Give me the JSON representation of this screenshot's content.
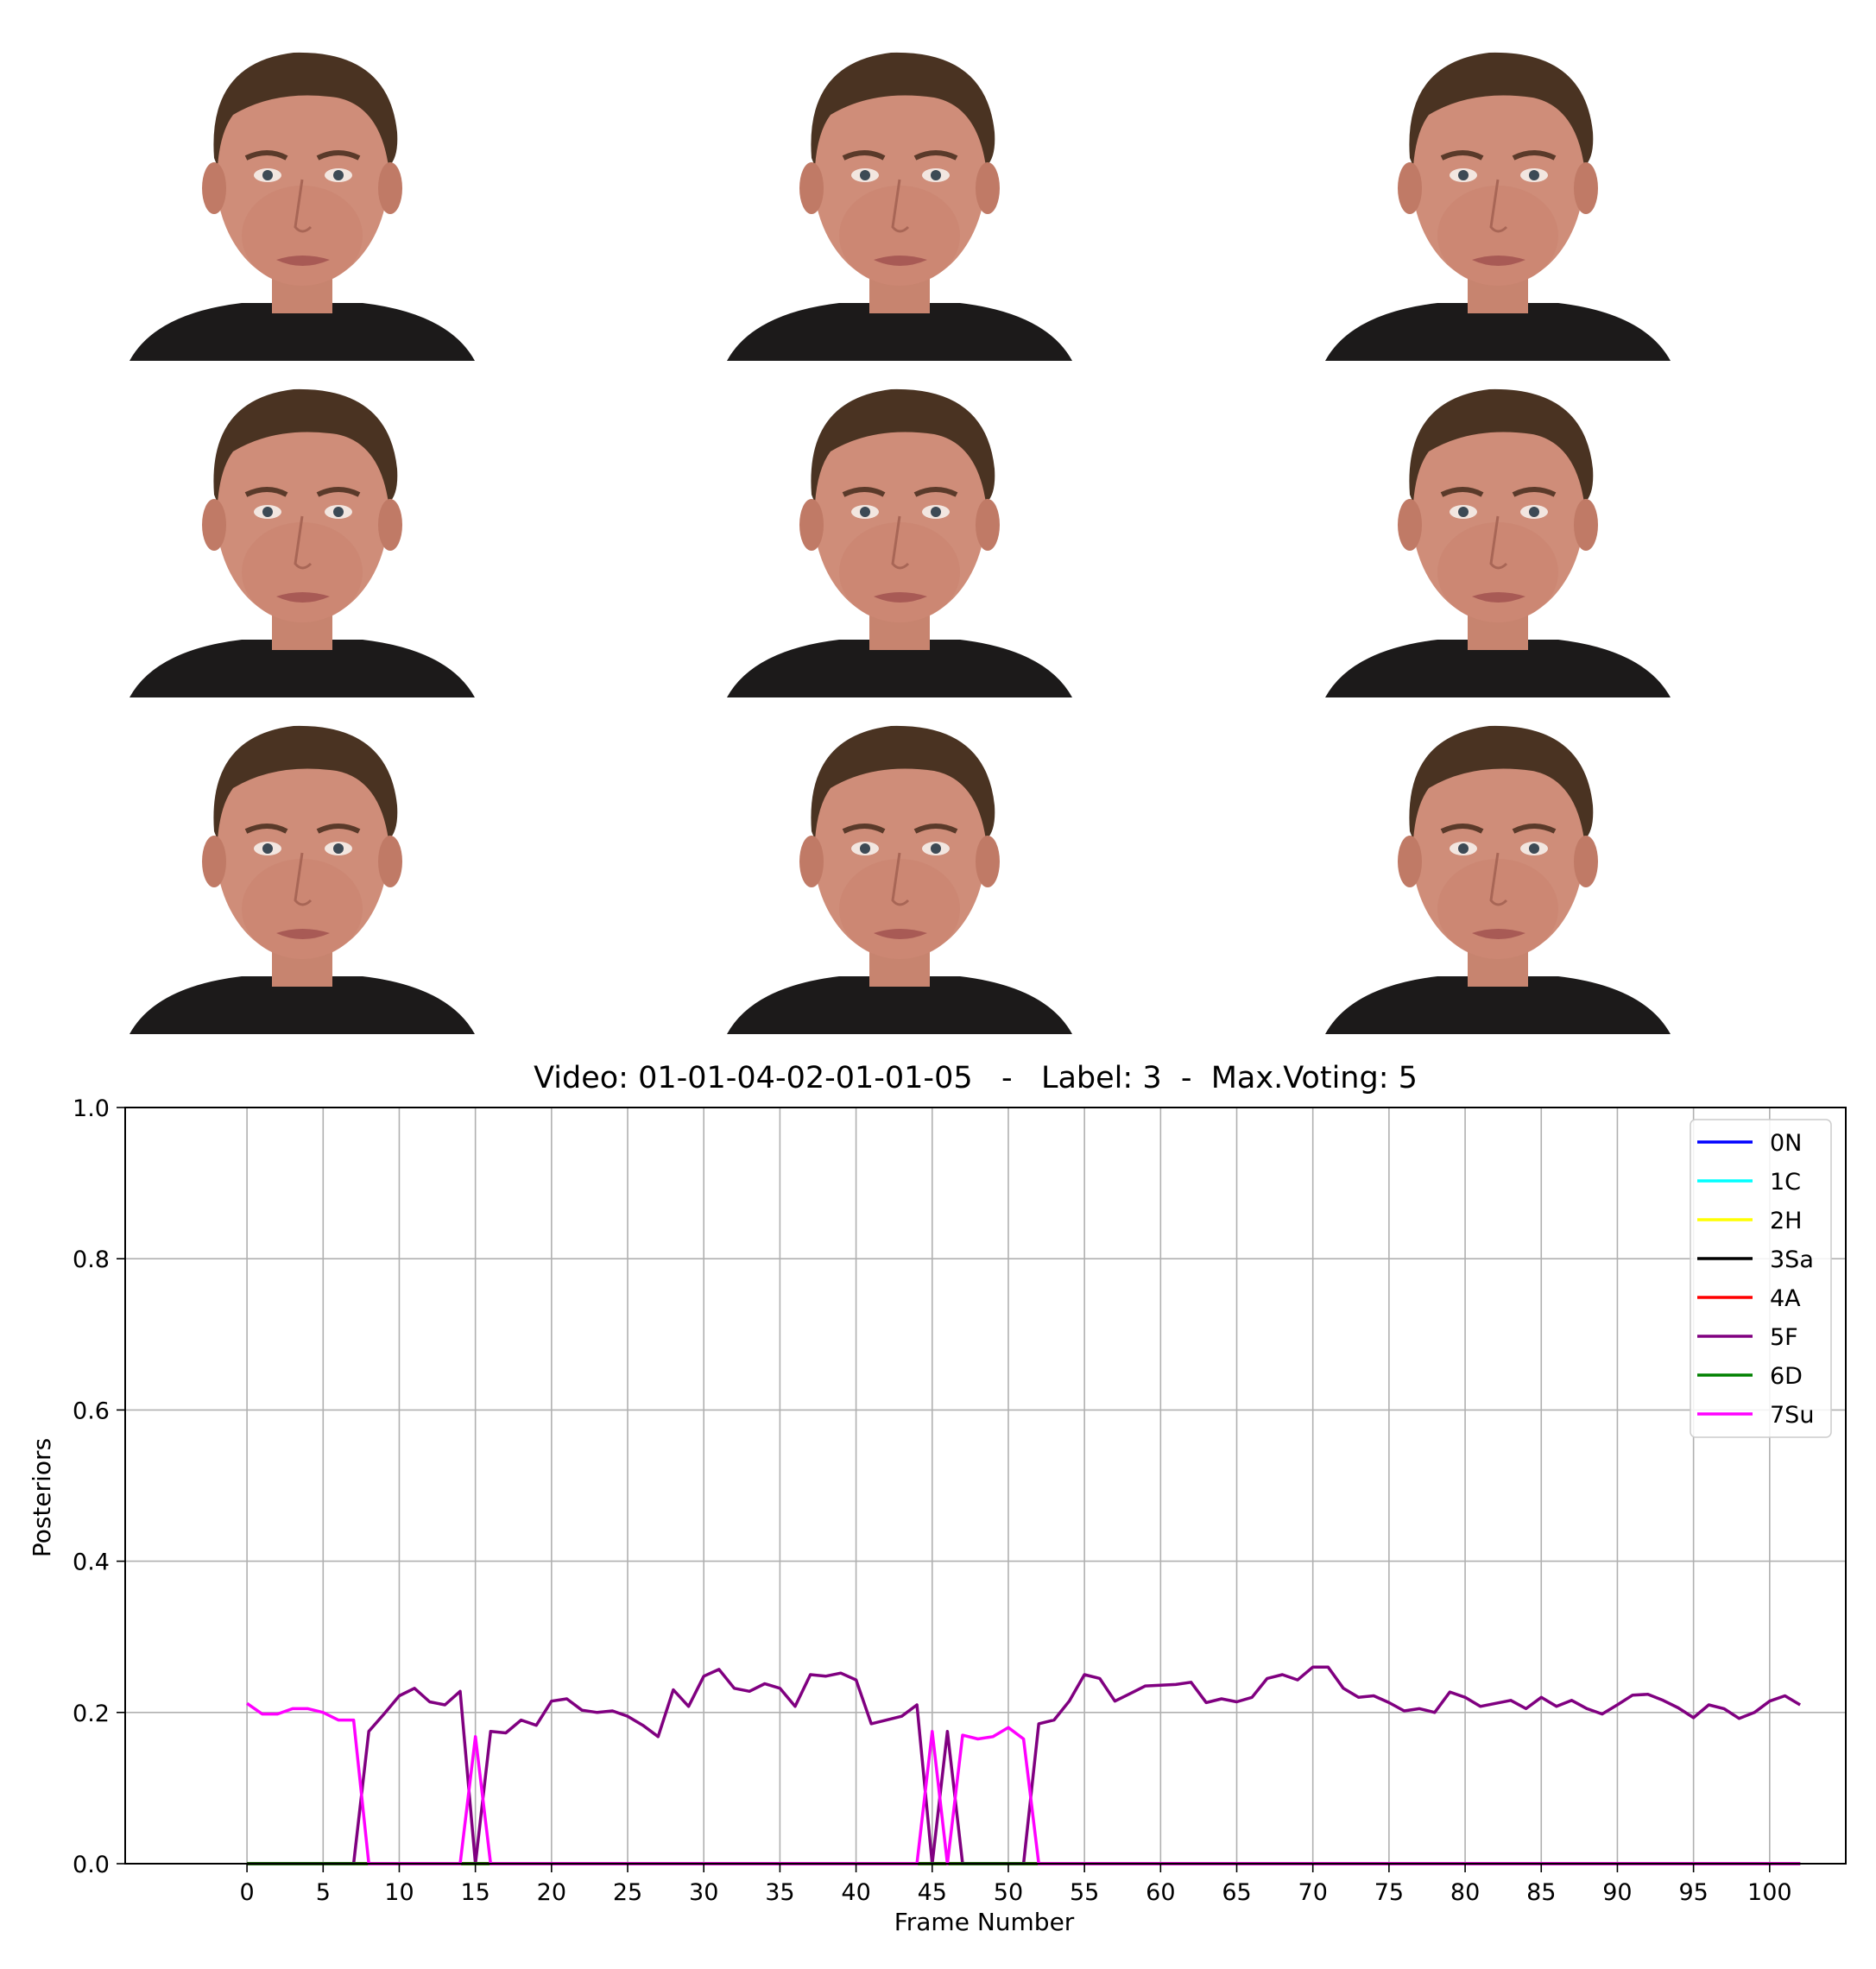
{
  "frames": {
    "count": 9,
    "items": [
      {
        "name": "frame-1",
        "alt": "face-frame"
      },
      {
        "name": "frame-2",
        "alt": "face-frame"
      },
      {
        "name": "frame-3",
        "alt": "face-frame"
      },
      {
        "name": "frame-4",
        "alt": "face-frame"
      },
      {
        "name": "frame-5",
        "alt": "face-frame"
      },
      {
        "name": "frame-6",
        "alt": "face-frame"
      },
      {
        "name": "frame-7",
        "alt": "face-frame"
      },
      {
        "name": "frame-8",
        "alt": "face-frame"
      },
      {
        "name": "frame-9",
        "alt": "face-frame"
      }
    ]
  },
  "chart_data": {
    "type": "line",
    "title": "Video: 01-01-04-02-01-01-05   -   Label: 3  -  Max.Voting: 5",
    "xlabel": "Frame Number",
    "ylabel": "Posteriors",
    "xlim": [
      -8,
      105
    ],
    "ylim": [
      0.0,
      1.0
    ],
    "xticks": [
      0,
      5,
      10,
      15,
      20,
      25,
      30,
      35,
      40,
      45,
      50,
      55,
      60,
      65,
      70,
      75,
      80,
      85,
      90,
      95,
      100
    ],
    "yticks": [
      "0.0",
      "0.2",
      "0.4",
      "0.6",
      "0.8",
      "1.0"
    ],
    "grid": true,
    "legend_position": "upper right",
    "series": [
      {
        "name": "0N",
        "color": "#0000ff",
        "values": [
          0
        ]
      },
      {
        "name": "1C",
        "color": "#00ffff",
        "values": [
          0
        ]
      },
      {
        "name": "2H",
        "color": "#ffff00",
        "values": [
          0
        ]
      },
      {
        "name": "3Sa",
        "color": "#000000",
        "values": [
          0
        ]
      },
      {
        "name": "4A",
        "color": "#ff0000",
        "values": [
          0
        ]
      },
      {
        "name": "5F",
        "color": "#800080",
        "values": [
          0,
          0,
          0,
          0,
          0,
          0,
          0,
          0,
          0.175,
          0.198,
          0.222,
          0.232,
          0.214,
          0.21,
          0.228,
          0,
          0.175,
          0.173,
          0.19,
          0.183,
          0.215,
          0.218,
          0.203,
          0.2,
          0.202,
          0.195,
          0.183,
          0.168,
          0.23,
          0.208,
          0.248,
          0.257,
          0.232,
          0.228,
          0.238,
          0.232,
          0.208,
          0.25,
          0.248,
          0.252,
          0.243,
          0.185,
          0.19,
          0.195,
          0.21,
          0,
          0.175,
          0,
          0,
          0,
          0,
          0,
          0.185,
          0.19,
          0.215,
          0.25,
          0.245,
          0.215,
          0.225,
          0.235,
          0.236,
          0.237,
          0.24,
          0.213,
          0.218,
          0.214,
          0.22,
          0.245,
          0.25,
          0.243,
          0.26,
          0.26,
          0.232,
          0.22,
          0.222,
          0.213,
          0.202,
          0.205,
          0.2,
          0.227,
          0.22,
          0.208,
          0.212,
          0.216,
          0.205,
          0.22,
          0.208,
          0.216,
          0.205,
          0.198,
          0.21,
          0.223,
          0.224,
          0.216,
          0.206,
          0.193,
          0.21,
          0.205,
          0.192,
          0.2,
          0.215,
          0.222,
          0.21
        ]
      },
      {
        "name": "6D",
        "color": "#008000",
        "values": [
          0
        ]
      },
      {
        "name": "7Su",
        "color": "#ff00ff",
        "values": [
          0.212,
          0.198,
          0.198,
          0.205,
          0.205,
          0.2,
          0.19,
          0.19,
          0,
          0,
          0,
          0,
          0,
          0,
          0,
          0.168,
          0,
          0,
          0,
          0,
          0,
          0,
          0,
          0,
          0,
          0,
          0,
          0,
          0,
          0,
          0,
          0,
          0,
          0,
          0,
          0,
          0,
          0,
          0,
          0,
          0,
          0,
          0,
          0,
          0,
          0.175,
          0,
          0.17,
          0.165,
          0.168,
          0.18,
          0.165,
          0,
          0,
          0,
          0,
          0,
          0,
          0,
          0,
          0,
          0,
          0,
          0,
          0,
          0,
          0,
          0,
          0,
          0,
          0,
          0,
          0,
          0,
          0,
          0,
          0,
          0,
          0,
          0,
          0,
          0,
          0,
          0,
          0,
          0,
          0,
          0,
          0,
          0,
          0,
          0,
          0,
          0,
          0,
          0,
          0,
          0,
          0,
          0,
          0,
          0,
          0
        ]
      }
    ]
  }
}
